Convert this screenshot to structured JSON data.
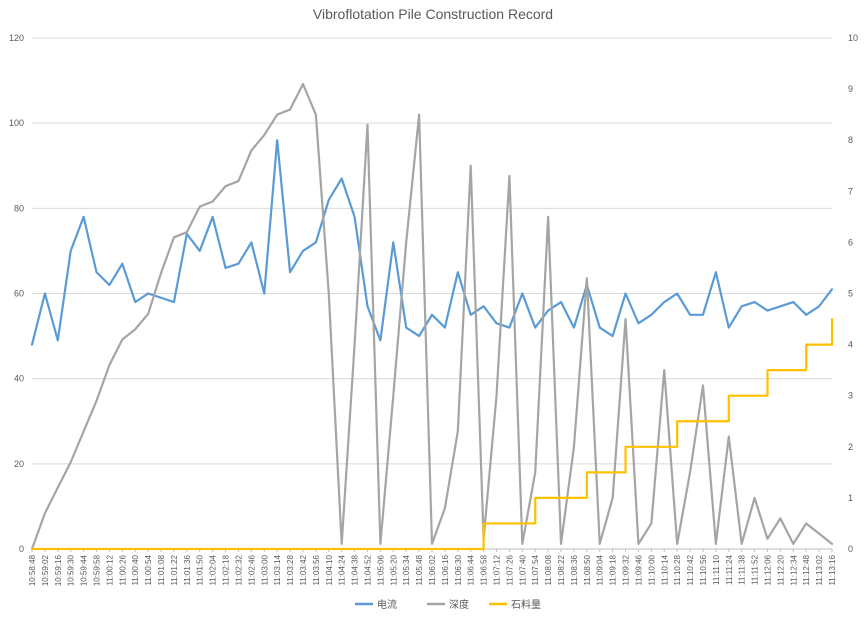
{
  "chart_data": {
    "type": "line",
    "title": "Vibroflotation  Pile Construction Record",
    "xlabel": "",
    "ylabel": "",
    "y_left_lim": [
      0,
      120
    ],
    "y_left_ticks": [
      "0",
      "20",
      "40",
      "60",
      "80",
      "100",
      "120"
    ],
    "y_right_lim": [
      0,
      10
    ],
    "y_right_ticks": [
      "0",
      "1",
      "2",
      "3",
      "4",
      "5",
      "6",
      "7",
      "8",
      "9",
      "10"
    ],
    "grid": true,
    "legend_position": "bottom",
    "x": [
      "10:58:48",
      "10:59:02",
      "10:59:16",
      "10:59:30",
      "10:59:44",
      "10:59:58",
      "11:00:12",
      "11:00:26",
      "11:00:40",
      "11:00:54",
      "11:01:08",
      "11:01:22",
      "11:01:36",
      "11:01:50",
      "11:02:04",
      "11:02:18",
      "11:02:32",
      "11:02:46",
      "11:03:00",
      "11:03:14",
      "11:03:28",
      "11:03:42",
      "11:03:56",
      "11:04:10",
      "11:04:24",
      "11:04:38",
      "11:04:52",
      "11:05:06",
      "11:05:20",
      "11:05:34",
      "11:05:48",
      "11:06:02",
      "11:06:16",
      "11:06:30",
      "11:06:44",
      "11:06:58",
      "11:07:12",
      "11:07:26",
      "11:07:40",
      "11:07:54",
      "11:08:08",
      "11:08:22",
      "11:08:36",
      "11:08:50",
      "11:09:04",
      "11:09:18",
      "11:09:32",
      "11:09:46",
      "11:10:00",
      "11:10:14",
      "11:10:28",
      "11:10:42",
      "11:10:56",
      "11:11:10",
      "11:11:24",
      "11:11:38",
      "11:11:52",
      "11:12:06",
      "11:12:20",
      "11:12:34",
      "11:12:48",
      "11:13:02",
      "11:13:16"
    ],
    "series": [
      {
        "name": "电流",
        "axis": "left",
        "color": "#5b9bd5",
        "values": [
          48,
          60,
          49,
          70,
          78,
          65,
          62,
          67,
          58,
          60,
          59,
          58,
          74,
          70,
          78,
          66,
          67,
          72,
          60,
          96,
          65,
          70,
          72,
          82,
          87,
          78,
          57,
          49,
          72,
          52,
          50,
          55,
          52,
          65,
          55,
          57,
          53,
          52,
          60,
          52,
          56,
          58,
          52,
          62,
          52,
          50,
          60,
          53,
          55,
          58,
          60,
          55,
          55,
          65,
          52,
          57,
          58,
          56,
          57,
          58,
          55,
          57,
          61
        ]
      },
      {
        "name": "深度",
        "axis": "right",
        "color": "#a5a5a5",
        "values": [
          0,
          0.7,
          1.2,
          1.7,
          2.3,
          2.9,
          3.6,
          4.1,
          4.3,
          4.6,
          5.4,
          6.1,
          6.2,
          6.7,
          6.8,
          7.1,
          7.2,
          7.8,
          8.1,
          8.5,
          8.6,
          9.1,
          8.5,
          5.0,
          0.1,
          4.0,
          8.3,
          0.1,
          3.0,
          6.0,
          8.5,
          0.1,
          0.8,
          2.3,
          7.5,
          0.2,
          3.0,
          7.3,
          0.1,
          1.5,
          6.5,
          0.1,
          2.0,
          5.3,
          0.1,
          1.0,
          4.5,
          0.1,
          0.5,
          3.5,
          0.1,
          1.5,
          3.2,
          0.1,
          2.2,
          0.1,
          1.0,
          0.2,
          0.6,
          0.1,
          0.5,
          0.3,
          0.1
        ]
      },
      {
        "name": "石料量",
        "axis": "right",
        "color": "#ffc000",
        "values": [
          0,
          0,
          0,
          0,
          0,
          0,
          0,
          0,
          0,
          0,
          0,
          0,
          0,
          0,
          0,
          0,
          0,
          0,
          0,
          0,
          0,
          0,
          0,
          0,
          0,
          0,
          0,
          0,
          0,
          0,
          0,
          0,
          0,
          0,
          0,
          0.5,
          0.5,
          0.5,
          0.5,
          1,
          1,
          1,
          1,
          1.5,
          1.5,
          1.5,
          2,
          2,
          2,
          2,
          2.5,
          2.5,
          2.5,
          2.5,
          3,
          3,
          3,
          3.5,
          3.5,
          3.5,
          4,
          4,
          4.5
        ]
      }
    ]
  }
}
